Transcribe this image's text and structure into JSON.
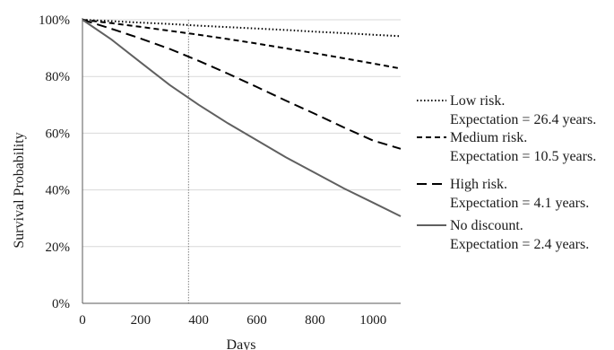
{
  "chart_data": {
    "type": "line",
    "xlabel": "Days",
    "ylabel": "Survival  Probability",
    "xlim": [
      0,
      1095
    ],
    "ylim": [
      0,
      1
    ],
    "xticks": [
      0,
      200,
      400,
      600,
      800,
      1000
    ],
    "xtick_labels": [
      "0",
      "200",
      "400",
      "600",
      "800",
      "1000"
    ],
    "yticks": [
      0,
      0.2,
      0.4,
      0.6,
      0.8,
      1.0
    ],
    "ytick_labels": [
      "0%",
      "20%",
      "40%",
      "60%",
      "80%",
      "100%"
    ],
    "grid": "horizontal",
    "legend_position": "right",
    "reference_line_x": 365,
    "series": [
      {
        "name": "Low risk.",
        "note": "Expectation = 26.4 years.",
        "style": "dotted",
        "color": "#000000",
        "x": [
          0,
          100,
          200,
          300,
          400,
          500,
          600,
          700,
          800,
          900,
          1000,
          1095
        ],
        "values": [
          1.0,
          0.995,
          0.99,
          0.985,
          0.979,
          0.974,
          0.969,
          0.964,
          0.958,
          0.953,
          0.947,
          0.942
        ]
      },
      {
        "name": "Medium risk.",
        "note": "Expectation = 10.5 years.",
        "style": "dashed",
        "color": "#000000",
        "x": [
          0,
          100,
          200,
          300,
          400,
          500,
          600,
          700,
          800,
          900,
          1000,
          1095
        ],
        "values": [
          1.0,
          0.988,
          0.975,
          0.961,
          0.947,
          0.932,
          0.916,
          0.899,
          0.882,
          0.864,
          0.846,
          0.828
        ]
      },
      {
        "name": "High risk.",
        "note": "Expectation = 4.1 years.",
        "style": "long-dash",
        "color": "#000000",
        "x": [
          0,
          100,
          200,
          300,
          400,
          500,
          600,
          700,
          800,
          900,
          1000,
          1095
        ],
        "values": [
          1.0,
          0.968,
          0.934,
          0.897,
          0.855,
          0.81,
          0.763,
          0.715,
          0.668,
          0.62,
          0.574,
          0.545
        ]
      },
      {
        "name": "No discount.",
        "note": "Expectation = 2.4 years.",
        "style": "solid",
        "color": "#606060",
        "x": [
          0,
          100,
          200,
          300,
          400,
          500,
          600,
          700,
          800,
          900,
          1000,
          1095
        ],
        "values": [
          1.0,
          0.93,
          0.85,
          0.77,
          0.7,
          0.635,
          0.575,
          0.515,
          0.46,
          0.405,
          0.355,
          0.307
        ]
      }
    ]
  }
}
